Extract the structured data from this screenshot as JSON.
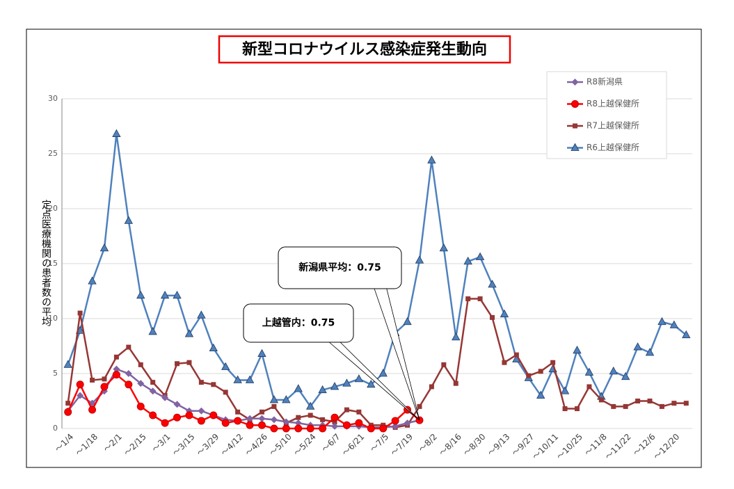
{
  "chart_data": {
    "type": "line",
    "title": "新型コロナウイルス感染症発生動向",
    "y_label": "定点医療機関の患者数の平均",
    "categories": [
      "～1/4",
      null,
      "～1/18",
      null,
      "～2/1",
      null,
      "～2/15",
      null,
      "～3/1",
      null,
      "～3/15",
      null,
      "～3/29",
      null,
      "～4/12",
      null,
      "～4/26",
      null,
      "～5/10",
      null,
      "～5/24",
      null,
      "～6/7",
      null,
      "～6/21",
      null,
      "～7/5",
      null,
      "～7/19",
      null,
      "～8/2",
      null,
      "～8/16",
      null,
      "～8/30",
      null,
      "～9/13",
      null,
      "～9/27",
      null,
      "～10/11",
      null,
      "～10/25",
      null,
      "～11/8",
      null,
      "～11/22",
      null,
      "～12/6",
      null,
      "～12/20",
      null
    ],
    "series": [
      {
        "name": "R8新潟県",
        "color": "#8064a2",
        "marker": "diamond",
        "values": [
          1.6,
          3.0,
          2.3,
          3.4,
          5.4,
          5.0,
          4.1,
          3.4,
          2.8,
          2.2,
          1.6,
          1.6,
          1.2,
          0.8,
          0.7,
          0.9,
          0.9,
          0.8,
          0.6,
          0.5,
          0.3,
          0.3,
          0.2,
          0.2,
          0.2,
          0.1,
          0.1,
          0.2,
          0.5,
          0.75,
          null,
          null,
          null,
          null,
          null,
          null,
          null,
          null,
          null,
          null,
          null,
          null,
          null,
          null,
          null,
          null,
          null,
          null,
          null,
          null,
          null,
          null
        ]
      },
      {
        "name": "R8上越保健所",
        "color": "#ff0000",
        "marker": "circle",
        "values": [
          1.5,
          4.0,
          1.7,
          3.8,
          4.9,
          4.0,
          2.0,
          1.2,
          0.5,
          1.0,
          1.2,
          0.7,
          1.2,
          0.5,
          0.7,
          0.3,
          0.3,
          0.0,
          0.0,
          0.0,
          0.0,
          0.0,
          1.0,
          0.3,
          0.5,
          0.0,
          0.0,
          0.7,
          1.7,
          0.75,
          null,
          null,
          null,
          null,
          null,
          null,
          null,
          null,
          null,
          null,
          null,
          null,
          null,
          null,
          null,
          null,
          null,
          null,
          null,
          null,
          null,
          null
        ]
      },
      {
        "name": "R7上越保健所",
        "color": "#953735",
        "marker": "square",
        "values": [
          2.3,
          10.5,
          4.4,
          4.5,
          6.5,
          7.4,
          5.8,
          4.2,
          3.0,
          5.9,
          6.0,
          4.2,
          4.0,
          3.3,
          1.5,
          0.8,
          1.5,
          2.0,
          0.5,
          1.0,
          1.2,
          0.8,
          0.6,
          1.7,
          1.5,
          0.3,
          0.3,
          0.1,
          0.3,
          2.0,
          3.8,
          5.8,
          4.1,
          11.8,
          11.8,
          10.1,
          6.0,
          6.7,
          4.8,
          5.2,
          6.0,
          1.8,
          1.8,
          3.8,
          2.6,
          2.0,
          2.0,
          2.5,
          2.5,
          2.0,
          2.3,
          2.3
        ]
      },
      {
        "name": "R6上越保健所",
        "color": "#4f81bd",
        "marker": "triangle",
        "values": [
          5.8,
          8.9,
          13.4,
          16.4,
          26.8,
          18.9,
          12.1,
          8.8,
          12.1,
          12.1,
          8.6,
          10.3,
          7.3,
          5.6,
          4.4,
          4.4,
          6.8,
          2.6,
          2.6,
          3.6,
          2.0,
          3.5,
          3.8,
          4.1,
          4.5,
          4.0,
          5.0,
          8.7,
          9.7,
          15.3,
          24.4,
          16.4,
          8.3,
          15.2,
          15.6,
          13.1,
          10.4,
          6.3,
          4.6,
          3.0,
          5.4,
          3.4,
          7.1,
          5.1,
          2.9,
          5.2,
          4.7,
          7.4,
          6.9,
          9.7,
          9.4,
          8.5
        ]
      }
    ],
    "annotations": [
      "新潟県平均：0.75",
      "上越管内：0.75"
    ],
    "ylim": [
      0,
      30
    ],
    "yticks": [
      0,
      5,
      10,
      15,
      20,
      25,
      30
    ],
    "grid": true,
    "legend": "upper right"
  }
}
